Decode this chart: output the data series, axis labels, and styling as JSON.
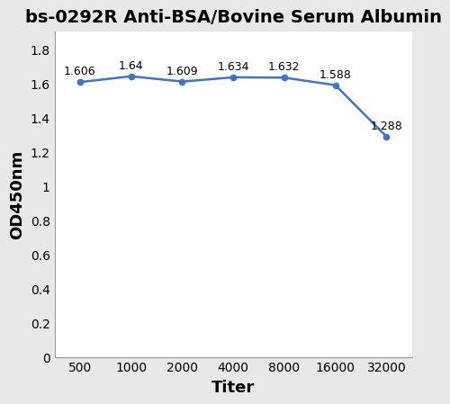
{
  "title": "bs-0292R Anti-BSA/Bovine Serum Albumin",
  "xlabel": "Titer",
  "ylabel": "OD450nm",
  "x_labels": [
    "500",
    "1000",
    "2000",
    "4000",
    "8000",
    "16000",
    "32000"
  ],
  "y_values": [
    1.606,
    1.64,
    1.609,
    1.634,
    1.632,
    1.588,
    1.288
  ],
  "annotations": [
    "1.606",
    "1.64",
    "1.609",
    "1.634",
    "1.632",
    "1.588",
    "1.288"
  ],
  "ylim": [
    0,
    1.9
  ],
  "yticks": [
    0,
    0.2,
    0.4,
    0.6,
    0.8,
    1.0,
    1.2,
    1.4,
    1.6,
    1.8
  ],
  "ytick_labels": [
    "0",
    "0.2",
    "0.4",
    "0.6",
    "0.8",
    "1",
    "1.2",
    "1.4",
    "1.6",
    "1.8"
  ],
  "line_color": "#4472C4",
  "marker_color": "#4472C4",
  "title_fontsize": 14,
  "axis_label_fontsize": 13,
  "tick_fontsize": 10,
  "annotation_fontsize": 9,
  "figure_bg": "#e8e8e8",
  "plot_bg": "#ffffff"
}
